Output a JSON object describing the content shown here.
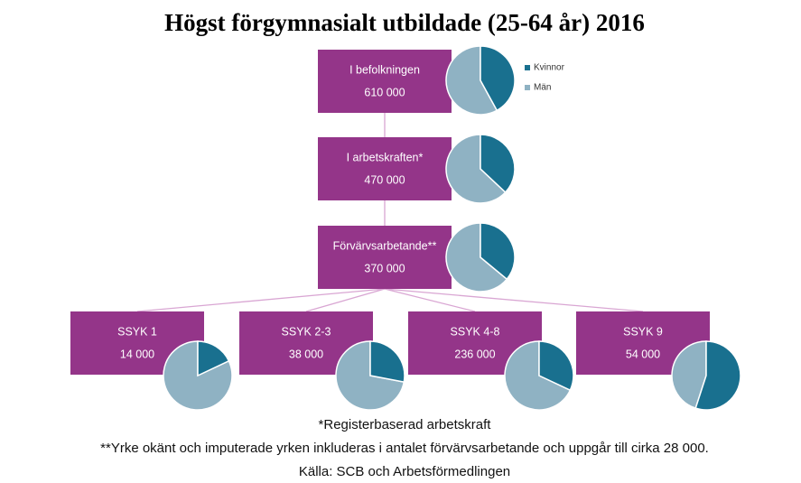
{
  "title": "Högst förgymnasialt utbildade (25-64 år) 2016",
  "legend": [
    {
      "name": "Kvinnor",
      "color": "#19708f"
    },
    {
      "name": "Män",
      "color": "#8fb2c3"
    }
  ],
  "nodes": [
    {
      "label": "I befolkningen",
      "value": "610 000",
      "kvinnor_share": 42
    },
    {
      "label": "I arbetskraften*",
      "value": "470 000",
      "kvinnor_share": 37
    },
    {
      "label": "Förvärvsarbetande**",
      "value": "370 000",
      "kvinnor_share": 36
    },
    {
      "label": "SSYK 1",
      "value": "14 000",
      "kvinnor_share": 18
    },
    {
      "label": "SSYK 2-3",
      "value": "38 000",
      "kvinnor_share": 28
    },
    {
      "label": "SSYK 4-8",
      "value": "236 000",
      "kvinnor_share": 32
    },
    {
      "label": "SSYK 9",
      "value": "54 000",
      "kvinnor_share": 55
    }
  ],
  "notes": [
    "*Registerbaserad arbetskraft",
    "**Yrke okänt och imputerade yrken inkluderas i antalet förvärvsarbetande och uppgår till cirka 28 000.",
    "Källa: SCB och Arbetsförmedlingen"
  ]
}
